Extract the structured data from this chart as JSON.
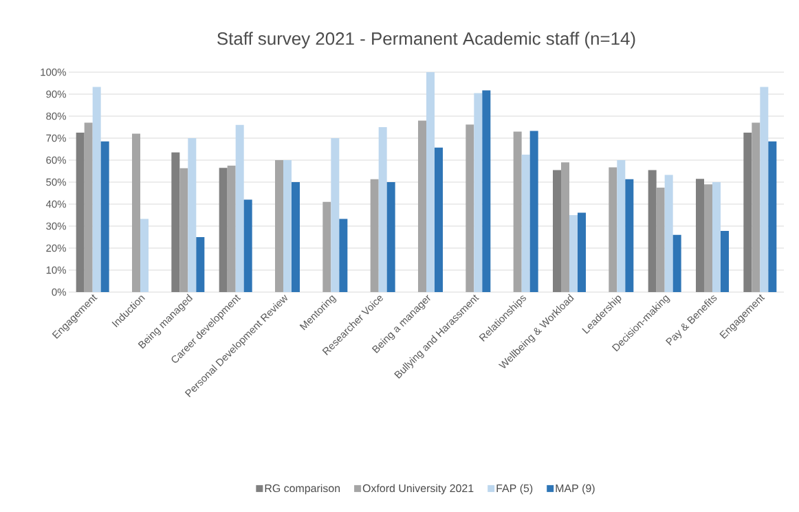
{
  "chart_data": {
    "type": "bar",
    "title": "Staff survey 2021 - Permanent Academic staff (n=14)",
    "categories": [
      "Engagement",
      "Induction",
      "Being managed",
      "Career development",
      "Personal Development Review",
      "Mentoring",
      "Researcher Voice",
      "Being a manager",
      "Bullying and Harassment",
      "Relationships",
      "Wellbeing & Workload",
      "Leadership",
      "Decision-making",
      "Pay & Benefits",
      "Engagement"
    ],
    "series": [
      {
        "name": "RG comparison",
        "color": "#7f7f7f",
        "values": [
          72.5,
          null,
          63.5,
          56.5,
          null,
          null,
          null,
          null,
          null,
          null,
          55.5,
          null,
          55.5,
          51.5,
          72.5
        ]
      },
      {
        "name": "Oxford University 2021",
        "color": "#a5a5a5",
        "values": [
          77,
          72,
          56.3,
          57.5,
          60,
          41,
          51.3,
          78,
          76.2,
          73,
          59,
          56.7,
          47.5,
          49,
          77
        ]
      },
      {
        "name": "FAP (5)",
        "color": "#bdd7ee",
        "values": [
          93.3,
          33.3,
          70,
          76,
          60,
          70,
          75,
          100,
          90.5,
          62.5,
          35,
          60,
          53.3,
          50,
          93.3
        ]
      },
      {
        "name": "MAP (9)",
        "color": "#2e75b6",
        "values": [
          68.5,
          null,
          25,
          42,
          50,
          33.3,
          50,
          65.7,
          91.7,
          73.3,
          36.1,
          51.3,
          26,
          27.8,
          68.5
        ]
      }
    ],
    "ylim": [
      0,
      100
    ],
    "yticks": [
      {
        "value": 0,
        "label": "0%"
      },
      {
        "value": 10,
        "label": "10%"
      },
      {
        "value": 20,
        "label": "20%"
      },
      {
        "value": 30,
        "label": "30%"
      },
      {
        "value": 40,
        "label": "40%"
      },
      {
        "value": 50,
        "label": "50%"
      },
      {
        "value": 60,
        "label": "60%"
      },
      {
        "value": 70,
        "label": "70%"
      },
      {
        "value": 80,
        "label": "80%"
      },
      {
        "value": 90,
        "label": "90%"
      },
      {
        "value": 100,
        "label": "100%"
      }
    ],
    "grid": "y",
    "legend": "bottom"
  }
}
